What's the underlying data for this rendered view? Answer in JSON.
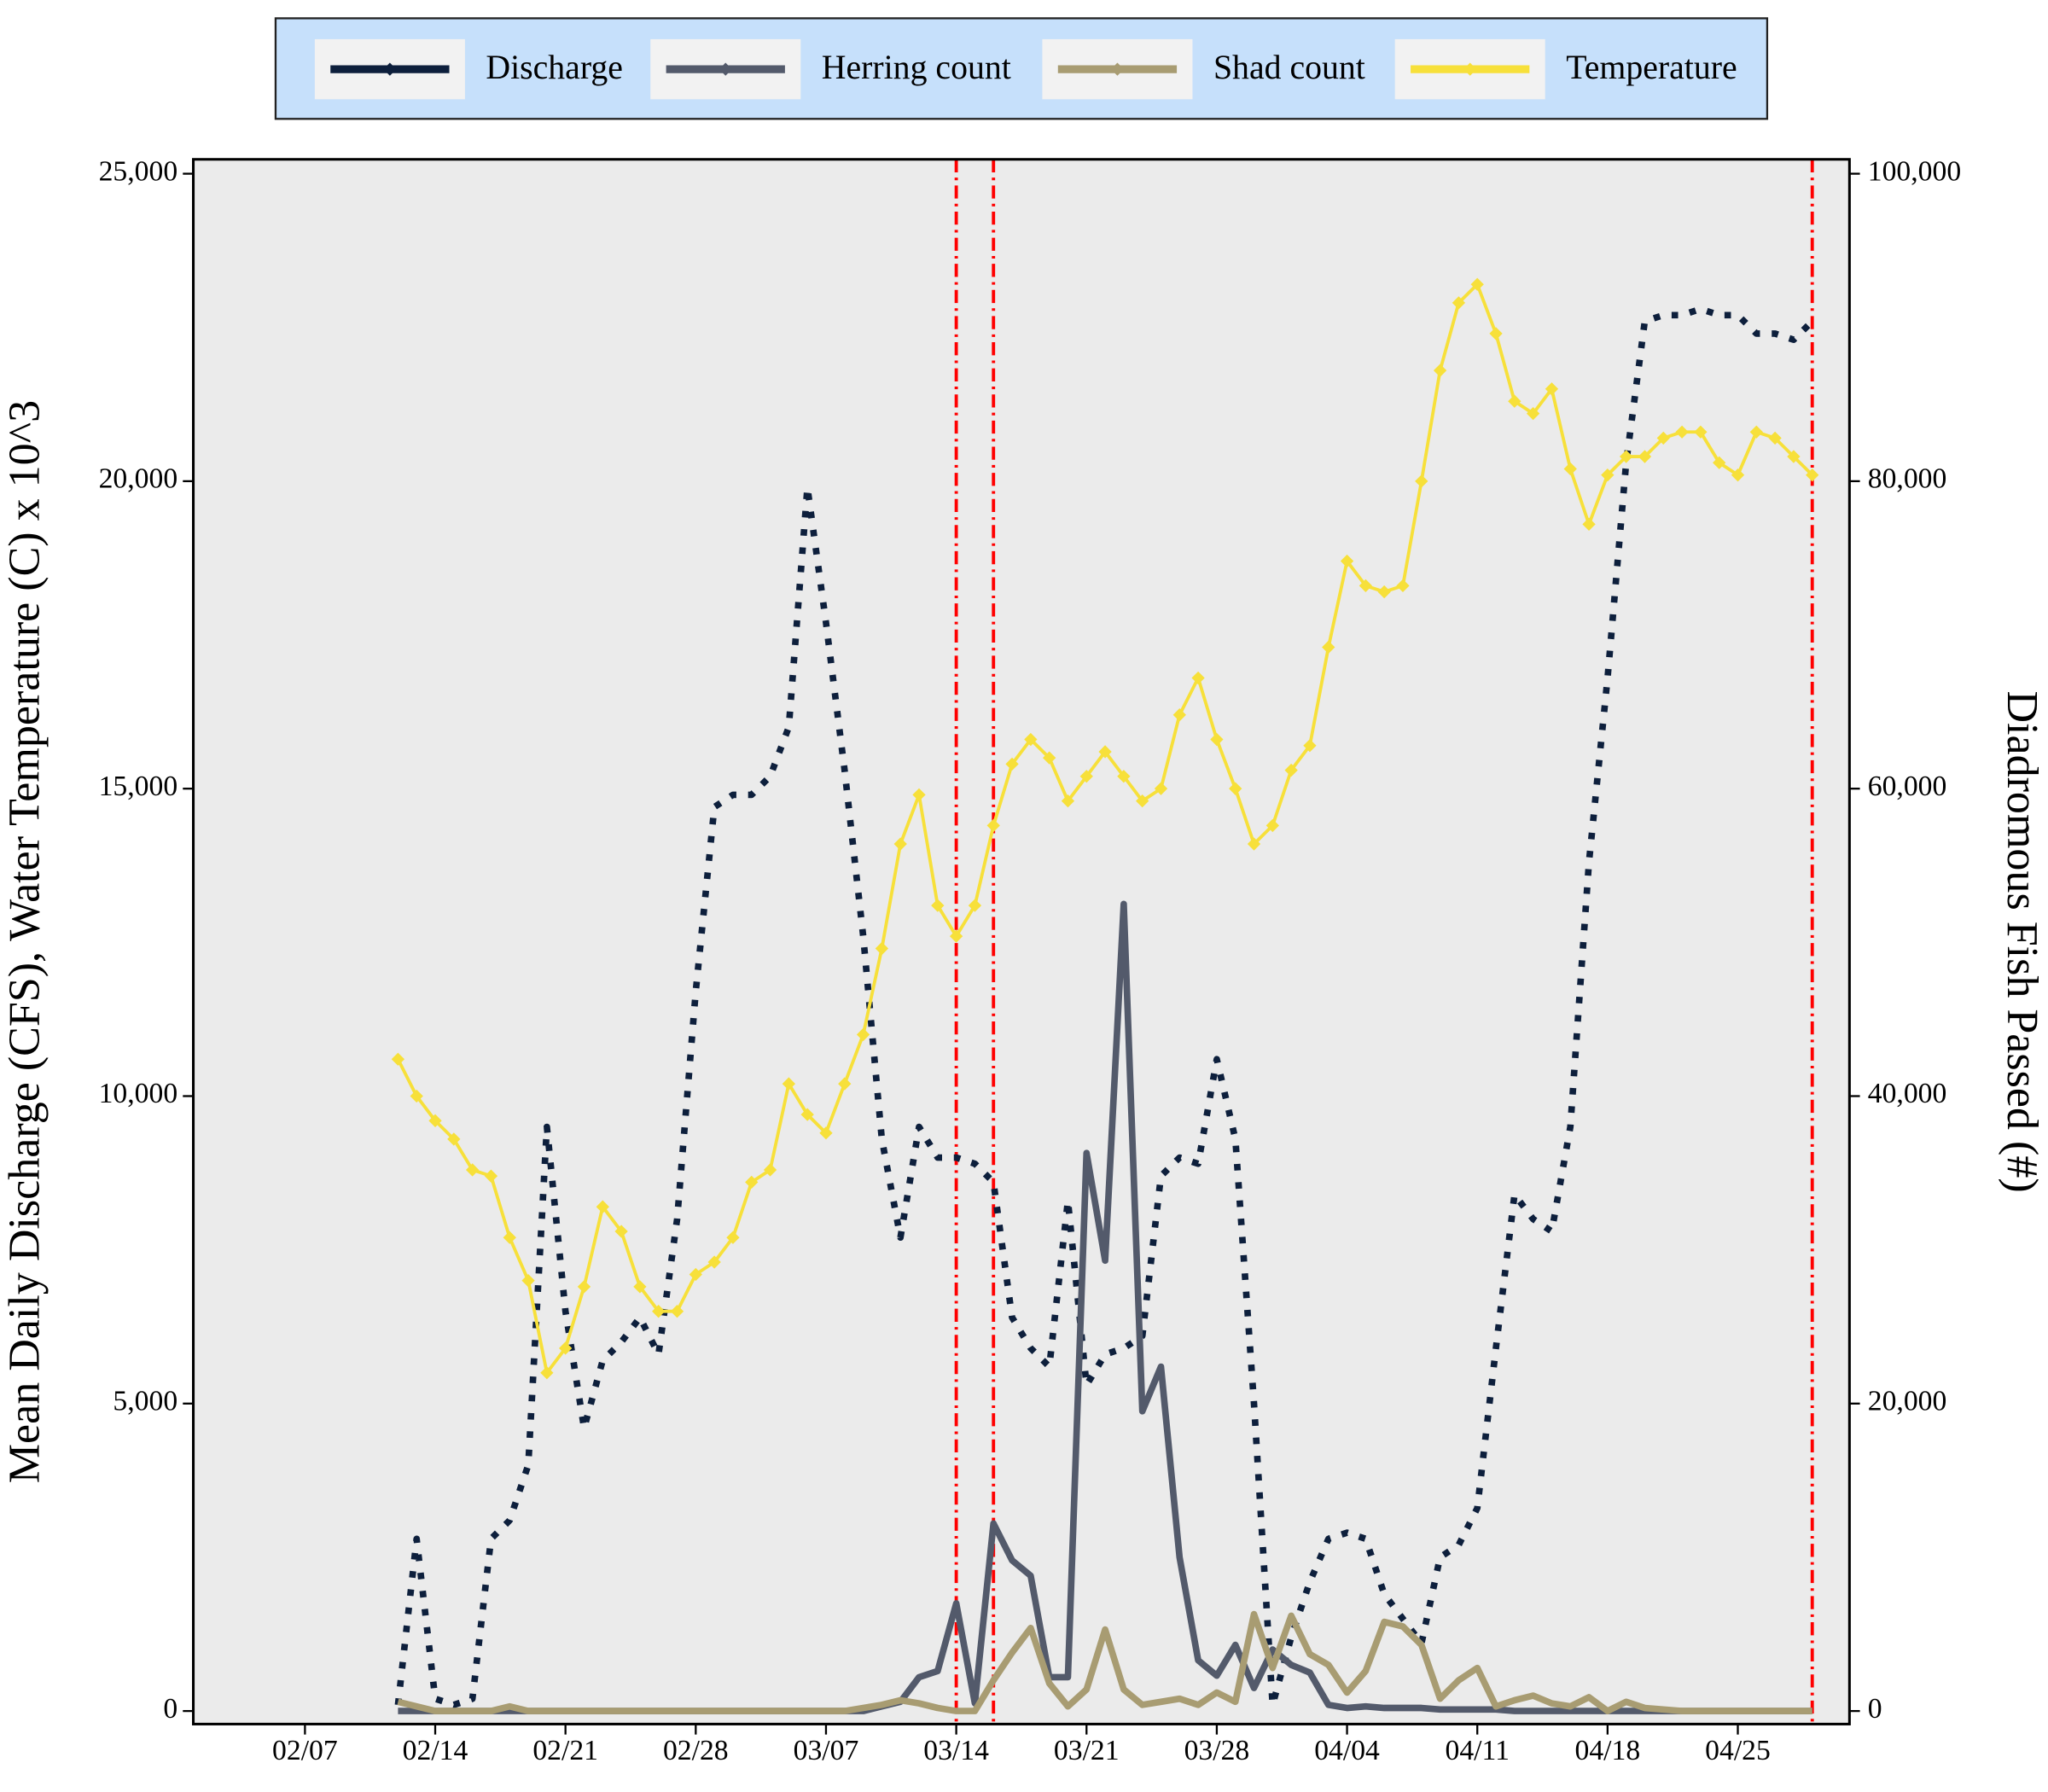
{
  "chart_data": {
    "type": "line",
    "x": [
      "02/12",
      "02/13",
      "02/14",
      "02/15",
      "02/16",
      "02/17",
      "02/18",
      "02/19",
      "02/20",
      "02/21",
      "02/22",
      "02/23",
      "02/24",
      "02/25",
      "02/26",
      "02/27",
      "02/28",
      "03/01",
      "03/02",
      "03/03",
      "03/04",
      "03/05",
      "03/06",
      "03/07",
      "03/08",
      "03/09",
      "03/10",
      "03/11",
      "03/12",
      "03/13",
      "03/14",
      "03/15",
      "03/16",
      "03/17",
      "03/18",
      "03/19",
      "03/20",
      "03/21",
      "03/22",
      "03/23",
      "03/24",
      "03/25",
      "03/26",
      "03/27",
      "03/28",
      "03/29",
      "03/30",
      "03/31",
      "04/01",
      "04/02",
      "04/03",
      "04/04",
      "04/05",
      "04/06",
      "04/07",
      "04/08",
      "04/09",
      "04/10",
      "04/11",
      "04/12",
      "04/13",
      "04/14",
      "04/15",
      "04/16",
      "04/17",
      "04/18",
      "04/19",
      "04/20",
      "04/21",
      "04/22",
      "04/23",
      "04/24",
      "04/25",
      "04/26",
      "04/27",
      "04/28",
      "04/29"
    ],
    "xlim": [
      "02/01",
      "05/01"
    ],
    "xticks": [
      "02/07",
      "02/14",
      "02/21",
      "02/28",
      "03/07",
      "03/14",
      "03/21",
      "03/28",
      "04/04",
      "04/11",
      "04/18",
      "04/25"
    ],
    "y_label": "Mean Daily Discharge (CFS), Water Temperature (C) x 10^3",
    "y2_label": "Diadromous Fish Passed (#)",
    "ylim": [
      0,
      25000
    ],
    "yticks": [
      0,
      {
        "value": 5000,
        "label": "5,000"
      },
      {
        "value": 10000,
        "label": "10,000"
      },
      {
        "value": 15000,
        "label": "15,000"
      },
      {
        "value": 20000,
        "label": "20,000"
      },
      {
        "value": 25000,
        "label": "25,000"
      }
    ],
    "y2lim": [
      0,
      100000
    ],
    "y2ticks": [
      0,
      {
        "value": 20000,
        "label": "20,000"
      },
      {
        "value": 40000,
        "label": "40,000"
      },
      {
        "value": 60000,
        "label": "60,000"
      },
      {
        "value": 80000,
        "label": "80,000"
      },
      {
        "value": 100000,
        "label": "100,000"
      }
    ],
    "vlines": [
      "03/14",
      "03/16",
      "04/29"
    ],
    "vline_color": "#ff0000",
    "series": [
      {
        "name": "Discharge",
        "color": "#0d1f3c",
        "line_style": "dotted",
        "values": [
          100,
          2800,
          200,
          100,
          200,
          2800,
          3100,
          4000,
          9500,
          6500,
          4600,
          5700,
          6000,
          6400,
          5800,
          8000,
          11700,
          14700,
          14900,
          14900,
          15200,
          16000,
          19900,
          17700,
          15300,
          12600,
          9300,
          7700,
          9500,
          9000,
          9000,
          8900,
          8600,
          6400,
          5900,
          5600,
          8300,
          5300,
          5800,
          5900,
          6100,
          8700,
          9000,
          8900,
          10600,
          9300,
          5000,
          100,
          1200,
          2100,
          2800,
          2900,
          2800,
          1900,
          1500,
          1100,
          2500,
          2700,
          3300,
          5900,
          8400,
          8000,
          7800,
          9500,
          13800,
          16800,
          20300,
          22600,
          22700,
          22700,
          22800,
          22700,
          22700,
          22400,
          22400,
          22300,
          22600
        ]
      },
      {
        "name": "Herring count",
        "color": "#535a6b",
        "line_style": "solid",
        "axis": "y2",
        "values": [
          0,
          0,
          0,
          0,
          0,
          0,
          0,
          0,
          0,
          0,
          0,
          0,
          0,
          0,
          0,
          0,
          0,
          0,
          0,
          0,
          0,
          0,
          0,
          0,
          0,
          0,
          300,
          600,
          2200,
          2600,
          7000,
          500,
          12200,
          9800,
          8800,
          2200,
          2200,
          36300,
          29300,
          52500,
          19500,
          22400,
          10000,
          3300,
          2300,
          4300,
          1500,
          4000,
          3000,
          2500,
          400,
          200,
          300,
          200,
          200,
          200,
          100,
          100,
          100,
          100,
          0,
          0,
          0,
          0,
          0,
          0,
          0,
          0,
          0,
          0,
          0,
          0,
          0,
          0,
          0,
          0,
          0
        ]
      },
      {
        "name": "Shad count",
        "color": "#a89c72",
        "line_style": "solid",
        "axis": "y2",
        "values": [
          600,
          300,
          0,
          0,
          0,
          0,
          300,
          0,
          0,
          0,
          0,
          0,
          0,
          0,
          0,
          0,
          0,
          0,
          0,
          0,
          0,
          0,
          0,
          0,
          0,
          200,
          400,
          700,
          500,
          200,
          0,
          0,
          2000,
          3800,
          5400,
          1800,
          300,
          1400,
          5300,
          1400,
          400,
          600,
          800,
          400,
          1200,
          600,
          6300,
          2800,
          6200,
          3700,
          3000,
          1200,
          2600,
          5800,
          5500,
          4300,
          800,
          2000,
          2800,
          300,
          700,
          1000,
          500,
          300,
          900,
          0,
          600,
          200,
          100,
          0,
          0,
          0,
          0,
          0,
          0,
          0,
          0
        ]
      },
      {
        "name": "Temperature",
        "color": "#f7e03a",
        "line_style": "thin",
        "marker": "diamond",
        "values": [
          10600,
          10000,
          9600,
          9300,
          8800,
          8700,
          7700,
          7000,
          5500,
          5900,
          6900,
          8200,
          7800,
          6900,
          6500,
          6500,
          7100,
          7300,
          7700,
          8600,
          8800,
          10200,
          9700,
          9400,
          10200,
          11000,
          12400,
          14100,
          14900,
          13100,
          12600,
          13100,
          14400,
          15400,
          15800,
          15500,
          14800,
          15200,
          15600,
          15200,
          14800,
          15000,
          16200,
          16800,
          15800,
          15000,
          14100,
          14400,
          15300,
          15700,
          17300,
          18700,
          18300,
          18200,
          18300,
          20000,
          21800,
          22900,
          23200,
          22400,
          21300,
          21100,
          21500,
          20200,
          19300,
          20100,
          20400,
          20400,
          20700,
          20800,
          20800,
          20300,
          20100,
          20800,
          20700,
          20400,
          20100
        ]
      }
    ]
  }
}
